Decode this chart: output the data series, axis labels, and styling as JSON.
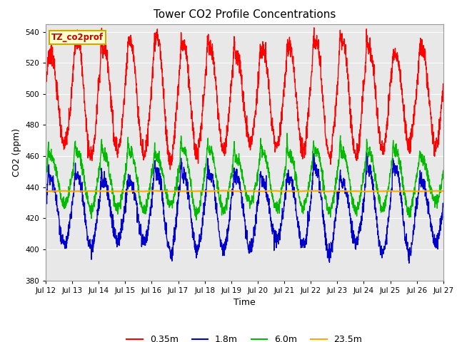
{
  "title": "Tower CO2 Profile Concentrations",
  "xlabel": "Time",
  "ylabel": "CO2 (ppm)",
  "ylim": [
    380,
    545
  ],
  "yticks": [
    380,
    400,
    420,
    440,
    460,
    480,
    500,
    520,
    540
  ],
  "series": {
    "0.35m": {
      "color": "#ff0000",
      "linewidth": 1.0
    },
    "1.8m": {
      "color": "#0000cc",
      "linewidth": 1.0
    },
    "6.0m": {
      "color": "#00bb00",
      "linewidth": 1.0
    },
    "23.5m": {
      "color": "#ffaa00",
      "linewidth": 1.5
    }
  },
  "legend_label": "TZ_co2prof",
  "legend_bg": "#ffffcc",
  "legend_border": "#ccaa00",
  "plot_bg": "#e8e8e8",
  "fig_bg": "#ffffff",
  "n_days": 15,
  "start_day": 12,
  "samples_per_day": 144,
  "base_23_5": 437.5
}
